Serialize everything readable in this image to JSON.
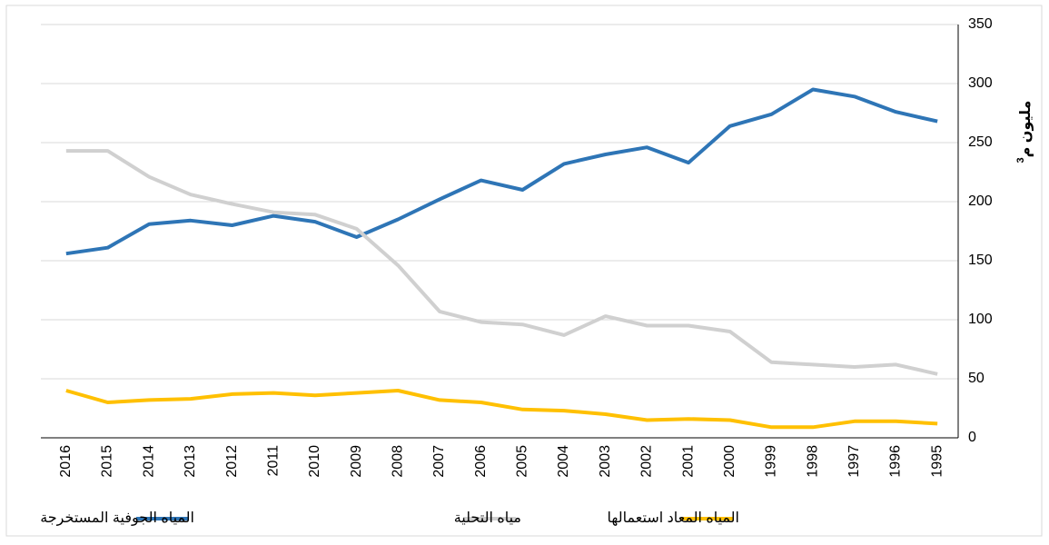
{
  "chart_data": {
    "type": "line",
    "ylabel": "مليون م",
    "ylabel_sup": "3",
    "categories": [
      "2016",
      "2015",
      "2014",
      "2013",
      "2012",
      "2011",
      "2010",
      "2009",
      "2008",
      "2007",
      "2006",
      "2005",
      "2004",
      "2003",
      "2002",
      "2001",
      "2000",
      "1999",
      "1998",
      "1997",
      "1996",
      "1995"
    ],
    "series": [
      {
        "name": "المياه الجوفية المستخرجة",
        "color": "#2e75b6",
        "values": [
          156,
          161,
          181,
          184,
          180,
          188,
          183,
          170,
          185,
          202,
          218,
          210,
          232,
          240,
          246,
          233,
          264,
          274,
          295,
          289,
          276,
          268
        ]
      },
      {
        "name": "مياه التحلية",
        "color": "#d0d0d0",
        "values": [
          243,
          243,
          221,
          206,
          198,
          191,
          189,
          177,
          146,
          107,
          98,
          96,
          87,
          103,
          95,
          95,
          90,
          64,
          62,
          60,
          62,
          54
        ]
      },
      {
        "name": "المياه المعاد استعمالها",
        "color": "#ffc000",
        "values": [
          40,
          30,
          32,
          33,
          37,
          38,
          36,
          38,
          40,
          32,
          30,
          24,
          23,
          20,
          15,
          16,
          15,
          9,
          9,
          14,
          14,
          12
        ]
      }
    ],
    "ylim": [
      0,
      350
    ],
    "yticks": [
      0,
      50,
      100,
      150,
      200,
      250,
      300,
      350
    ],
    "grid": true,
    "legend": "bottom"
  }
}
